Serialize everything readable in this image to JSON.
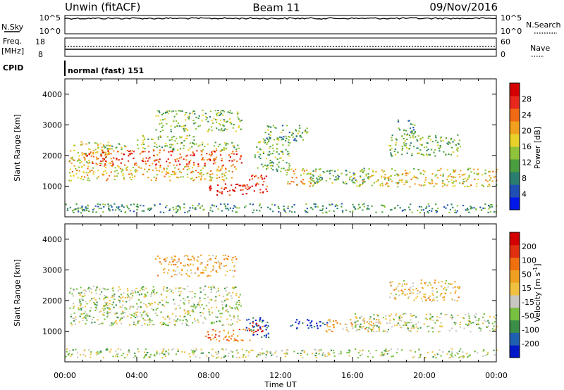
{
  "header": {
    "station": "Unwin (fitACF)",
    "beam": "Beam 11",
    "date": "09/Nov/2016"
  },
  "top_panels": {
    "nsky_label": "N.Sky",
    "nsky_ticks": [
      "10^5",
      "10^0"
    ],
    "nsearch_label": "N.Search",
    "nsearch_ticks": [
      "10^5",
      "10^0"
    ],
    "freq_label": "Freq.",
    "freq_unit": "[MHz]",
    "freq_ticks": [
      "18",
      "8"
    ],
    "nave_label": "Nave",
    "nave_ticks": [
      "60",
      "0"
    ],
    "cpid_label": "CPID",
    "cpid_value": "normal (fast) 151"
  },
  "chart_data": [
    {
      "type": "heatmap",
      "name": "power",
      "ylabel": "Slant Range [km]",
      "ylim": [
        0,
        4500
      ],
      "y_ticks": [
        "1000",
        "2000",
        "3000",
        "4000"
      ],
      "x_ticks": [
        "00:00",
        "04:00",
        "08:00",
        "12:00",
        "16:00",
        "20:00",
        "00:00"
      ],
      "xlim": [
        0,
        24
      ],
      "colorbar": {
        "label": "Power [dB]",
        "ticks": [
          "4",
          "8",
          "12",
          "16",
          "20",
          "24",
          "28"
        ],
        "colors": [
          "#0018e8",
          "#1f4fb5",
          "#2a7e6f",
          "#4a9e3f",
          "#8fc33a",
          "#e8d22a",
          "#f0a01e",
          "#f06a14",
          "#e8281c",
          "#d40000"
        ]
      },
      "regions": [
        {
          "t": [
            0.2,
            2.5
          ],
          "r": [
            1750,
            2500
          ],
          "level": 0.55
        },
        {
          "t": [
            0.2,
            9.5
          ],
          "r": [
            1200,
            1700
          ],
          "level": 0.6
        },
        {
          "t": [
            1.0,
            9.8
          ],
          "r": [
            1700,
            2200
          ],
          "level": 0.8
        },
        {
          "t": [
            2.0,
            9.8
          ],
          "r": [
            2200,
            2450
          ],
          "level": 0.45
        },
        {
          "t": [
            4.0,
            7.5
          ],
          "r": [
            2500,
            2700
          ],
          "level": 0.45
        },
        {
          "t": [
            5.0,
            9.8
          ],
          "r": [
            2800,
            3500
          ],
          "level": 0.4
        },
        {
          "t": [
            7.8,
            10.2
          ],
          "r": [
            700,
            1100
          ],
          "level": 0.92
        },
        {
          "t": [
            10.2,
            11.3
          ],
          "r": [
            800,
            1400
          ],
          "level": 0.85
        },
        {
          "t": [
            10.5,
            12.5
          ],
          "r": [
            1500,
            2600
          ],
          "level": 0.4
        },
        {
          "t": [
            12.3,
            14.0
          ],
          "r": [
            1000,
            1600
          ],
          "level": 0.6
        },
        {
          "t": [
            13.5,
            17.0
          ],
          "r": [
            1100,
            1600
          ],
          "level": 0.35
        },
        {
          "t": [
            11.0,
            13.5
          ],
          "r": [
            2500,
            3000
          ],
          "level": 0.35
        },
        {
          "t": [
            16.0,
            24.0
          ],
          "r": [
            1000,
            1600
          ],
          "level": 0.55
        },
        {
          "t": [
            18.0,
            22.0
          ],
          "r": [
            2000,
            2700
          ],
          "level": 0.4
        },
        {
          "t": [
            18.5,
            19.5
          ],
          "r": [
            2700,
            3200
          ],
          "level": 0.3
        },
        {
          "t": [
            0.0,
            24.0
          ],
          "r": [
            150,
            450
          ],
          "level": 0.3
        }
      ]
    },
    {
      "type": "heatmap",
      "name": "velocity",
      "ylabel": "Slant Range [km]",
      "ylim": [
        0,
        4500
      ],
      "y_ticks": [
        "1000",
        "2000",
        "3000",
        "4000"
      ],
      "x_ticks": [
        "00:00",
        "04:00",
        "08:00",
        "12:00",
        "16:00",
        "20:00",
        "00:00"
      ],
      "xlim": [
        0,
        24
      ],
      "xlabel": "Time UT",
      "colorbar": {
        "label": "Velocity [m s",
        "label_sup": "-1",
        "label_end": "]",
        "ticks": [
          "200",
          "100",
          "50",
          "15",
          "-15",
          "-50",
          "-100",
          "-200"
        ],
        "colors": [
          "#0018c8",
          "#2060b0",
          "#3a8e48",
          "#78c040",
          "#c8c8c0",
          "#f0c040",
          "#f0a020",
          "#f07010",
          "#e03010",
          "#d40000"
        ]
      },
      "regions": [
        {
          "t": [
            0.2,
            9.8
          ],
          "r": [
            1200,
            2500
          ],
          "level": 0.42
        },
        {
          "t": [
            5.0,
            9.5
          ],
          "r": [
            2800,
            3500
          ],
          "level": 0.6
        },
        {
          "t": [
            7.8,
            10.5
          ],
          "r": [
            700,
            1100
          ],
          "level": 0.72
        },
        {
          "t": [
            10.0,
            11.3
          ],
          "r": [
            800,
            1500
          ],
          "level": 0.12
        },
        {
          "t": [
            10.4,
            11.0
          ],
          "r": [
            900,
            1300
          ],
          "level": 0.9
        },
        {
          "t": [
            12.5,
            14.6
          ],
          "r": [
            1100,
            1400
          ],
          "level": 0.08
        },
        {
          "t": [
            14.5,
            17.5
          ],
          "r": [
            1000,
            1400
          ],
          "level": 0.6
        },
        {
          "t": [
            16.0,
            24.0
          ],
          "r": [
            1000,
            1600
          ],
          "level": 0.42
        },
        {
          "t": [
            18.0,
            22.0
          ],
          "r": [
            2000,
            2700
          ],
          "level": 0.55
        },
        {
          "t": [
            0.0,
            24.0
          ],
          "r": [
            150,
            450
          ],
          "level": 0.42
        }
      ]
    }
  ]
}
